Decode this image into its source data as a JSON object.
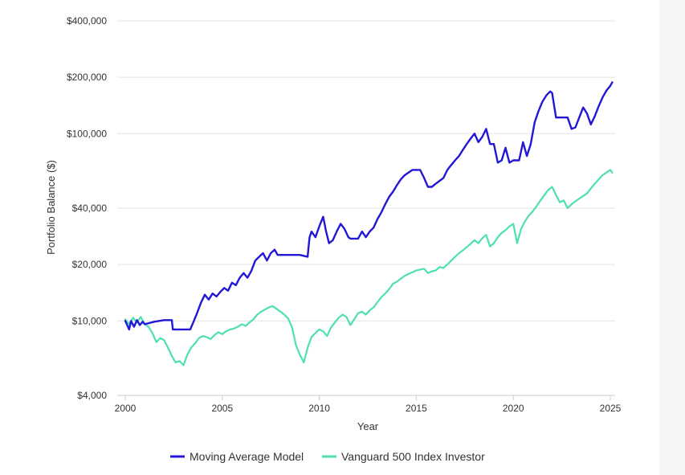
{
  "chart_data": {
    "type": "line",
    "title": "",
    "xlabel": "Year",
    "ylabel": "Portfolio Balance ($)",
    "y_scale": "log",
    "xlim": [
      2000,
      2025.3
    ],
    "ylim": [
      4000,
      400000
    ],
    "x_ticks": [
      2000,
      2005,
      2010,
      2015,
      2020,
      2025
    ],
    "y_ticks": [
      {
        "value": 4000,
        "label": "$4,000"
      },
      {
        "value": 10000,
        "label": "$10,000"
      },
      {
        "value": 20000,
        "label": "$20,000"
      },
      {
        "value": 40000,
        "label": "$40,000"
      },
      {
        "value": 100000,
        "label": "$100,000"
      },
      {
        "value": 200000,
        "label": "$200,000"
      },
      {
        "value": 400000,
        "label": "$400,000"
      }
    ],
    "grid": true,
    "legend_position": "bottom",
    "series": [
      {
        "name": "Moving Average Model",
        "color": "#2317d6",
        "x": [
          2000.0,
          2000.2,
          2000.3,
          2000.45,
          2000.6,
          2000.75,
          2000.9,
          2001.0,
          2001.5,
          2002.0,
          2002.4,
          2002.45,
          2003.0,
          2003.35,
          2003.5,
          2003.7,
          2003.9,
          2004.1,
          2004.3,
          2004.5,
          2004.7,
          2004.9,
          2005.1,
          2005.3,
          2005.5,
          2005.7,
          2005.9,
          2006.1,
          2006.3,
          2006.5,
          2006.7,
          2006.9,
          2007.1,
          2007.3,
          2007.5,
          2007.7,
          2007.85,
          2008.0,
          2008.5,
          2009.0,
          2009.4,
          2009.45,
          2009.5,
          2009.6,
          2009.8,
          2010.0,
          2010.2,
          2010.35,
          2010.5,
          2010.7,
          2010.9,
          2011.1,
          2011.3,
          2011.5,
          2011.6,
          2011.8,
          2012.0,
          2012.2,
          2012.4,
          2012.6,
          2012.8,
          2013.0,
          2013.2,
          2013.4,
          2013.6,
          2013.8,
          2014.0,
          2014.2,
          2014.4,
          2014.6,
          2014.8,
          2015.0,
          2015.2,
          2015.4,
          2015.6,
          2015.8,
          2016.0,
          2016.2,
          2016.4,
          2016.6,
          2016.8,
          2017.0,
          2017.2,
          2017.4,
          2017.6,
          2017.8,
          2018.0,
          2018.2,
          2018.4,
          2018.6,
          2018.8,
          2019.0,
          2019.2,
          2019.4,
          2019.6,
          2019.8,
          2020.0,
          2020.3,
          2020.5,
          2020.7,
          2020.9,
          2021.1,
          2021.3,
          2021.5,
          2021.7,
          2021.9,
          2022.0,
          2022.2,
          2022.5,
          2022.8,
          2023.0,
          2023.2,
          2023.4,
          2023.6,
          2023.8,
          2024.0,
          2024.2,
          2024.4,
          2024.6,
          2024.8,
          2025.0,
          2025.1
        ],
        "y": [
          10000,
          9000,
          10000,
          9300,
          10100,
          9500,
          9900,
          9600,
          9900,
          10100,
          10100,
          9000,
          9000,
          9000,
          9800,
          11000,
          12500,
          13800,
          13000,
          14000,
          13500,
          14300,
          15000,
          14500,
          16000,
          15500,
          17000,
          18000,
          17000,
          18500,
          21000,
          22000,
          23000,
          21000,
          23000,
          24000,
          22500,
          22500,
          22500,
          22500,
          22000,
          25000,
          28000,
          30000,
          28000,
          32000,
          36000,
          30000,
          26000,
          27000,
          30000,
          33000,
          31000,
          28000,
          27500,
          27500,
          27500,
          30000,
          28000,
          30000,
          31500,
          35000,
          38000,
          42000,
          46000,
          49000,
          53000,
          57000,
          60000,
          62000,
          64000,
          64000,
          64000,
          58000,
          52000,
          52000,
          54000,
          56000,
          58000,
          64000,
          68000,
          72000,
          76000,
          82000,
          88000,
          94000,
          100000,
          90000,
          96000,
          106000,
          88000,
          88000,
          70000,
          72000,
          84000,
          70000,
          72000,
          72000,
          90000,
          76000,
          88000,
          115000,
          132000,
          148000,
          160000,
          168000,
          165000,
          122000,
          122000,
          122000,
          106000,
          108000,
          122000,
          138000,
          128000,
          112000,
          124000,
          140000,
          156000,
          170000,
          180000,
          188000
        ]
      },
      {
        "name": "Vanguard 500 Index Investor",
        "color": "#4fe0b2",
        "x": [
          2000.0,
          2000.2,
          2000.4,
          2000.6,
          2000.8,
          2001.0,
          2001.2,
          2001.4,
          2001.6,
          2001.8,
          2002.0,
          2002.2,
          2002.4,
          2002.6,
          2002.8,
          2003.0,
          2003.2,
          2003.4,
          2003.6,
          2003.8,
          2004.0,
          2004.2,
          2004.4,
          2004.6,
          2004.8,
          2005.0,
          2005.2,
          2005.4,
          2005.6,
          2005.8,
          2006.0,
          2006.2,
          2006.4,
          2006.6,
          2006.8,
          2007.0,
          2007.2,
          2007.4,
          2007.6,
          2007.8,
          2008.0,
          2008.2,
          2008.4,
          2008.6,
          2008.8,
          2009.0,
          2009.2,
          2009.4,
          2009.6,
          2009.8,
          2010.0,
          2010.2,
          2010.4,
          2010.6,
          2010.8,
          2011.0,
          2011.2,
          2011.4,
          2011.6,
          2011.8,
          2012.0,
          2012.2,
          2012.4,
          2012.6,
          2012.8,
          2013.0,
          2013.2,
          2013.4,
          2013.6,
          2013.8,
          2014.0,
          2014.2,
          2014.4,
          2014.6,
          2014.8,
          2015.0,
          2015.2,
          2015.4,
          2015.6,
          2015.8,
          2016.0,
          2016.2,
          2016.4,
          2016.6,
          2016.8,
          2017.0,
          2017.2,
          2017.4,
          2017.6,
          2017.8,
          2018.0,
          2018.2,
          2018.4,
          2018.6,
          2018.8,
          2019.0,
          2019.2,
          2019.4,
          2019.6,
          2019.8,
          2020.0,
          2020.2,
          2020.4,
          2020.6,
          2020.8,
          2021.0,
          2021.2,
          2021.4,
          2021.6,
          2021.8,
          2022.0,
          2022.2,
          2022.4,
          2022.6,
          2022.8,
          2023.0,
          2023.2,
          2023.4,
          2023.6,
          2023.8,
          2024.0,
          2024.2,
          2024.4,
          2024.6,
          2024.8,
          2025.0,
          2025.1
        ],
        "y": [
          10200,
          9600,
          10400,
          9800,
          10500,
          9600,
          9300,
          8600,
          7700,
          8100,
          7900,
          7200,
          6500,
          6000,
          6100,
          5800,
          6600,
          7200,
          7600,
          8100,
          8300,
          8200,
          8000,
          8400,
          8700,
          8500,
          8800,
          9000,
          9100,
          9300,
          9600,
          9400,
          9800,
          10200,
          10800,
          11200,
          11500,
          11800,
          12000,
          11600,
          11200,
          10800,
          10300,
          9200,
          7400,
          6600,
          6000,
          7200,
          8200,
          8600,
          9000,
          8800,
          8300,
          9200,
          9800,
          10400,
          10800,
          10500,
          9500,
          10200,
          11000,
          11200,
          10800,
          11400,
          11800,
          12600,
          13400,
          14000,
          14800,
          15800,
          16200,
          16800,
          17400,
          17800,
          18200,
          18600,
          18800,
          19000,
          18000,
          18400,
          18600,
          19400,
          19200,
          20000,
          21000,
          22000,
          23000,
          23800,
          24800,
          25800,
          27000,
          26000,
          27600,
          28800,
          25000,
          26000,
          28000,
          29500,
          30500,
          32000,
          33000,
          26000,
          31000,
          34000,
          36500,
          38500,
          41000,
          44000,
          47000,
          50000,
          52000,
          47000,
          43000,
          44000,
          40000,
          42000,
          43500,
          45000,
          46500,
          48000,
          51000,
          54000,
          57000,
          60000,
          62000,
          64000,
          62000
        ]
      }
    ]
  }
}
